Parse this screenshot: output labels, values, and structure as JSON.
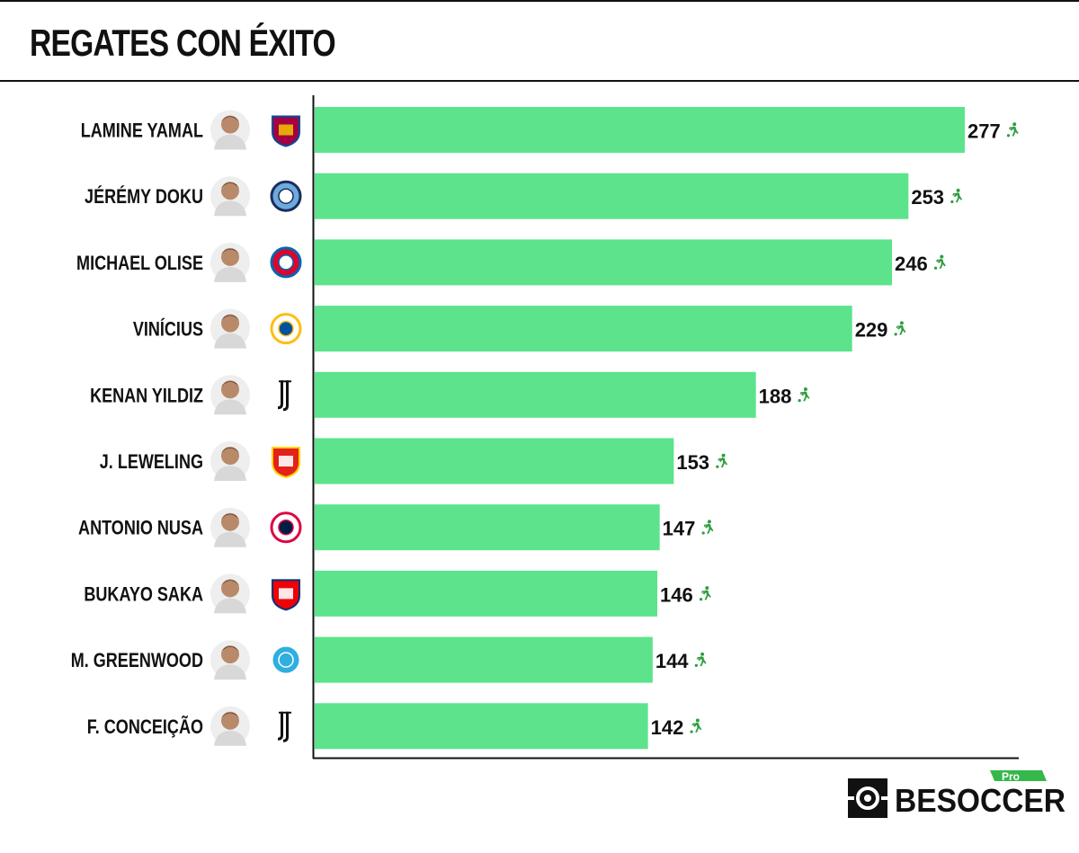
{
  "title": "REGATES CON ÉXITO",
  "chart_data": {
    "type": "bar",
    "orientation": "horizontal",
    "title": "REGATES CON ÉXITO",
    "categories": [
      "LAMINE YAMAL",
      "JÉRÉMY DOKU",
      "MICHAEL OLISE",
      "VINÍCIUS",
      "KENAN YILDIZ",
      "J. LEWELING",
      "ANTONIO NUSA",
      "BUKAYO SAKA",
      "M. GREENWOOD",
      "F. CONCEIÇÃO"
    ],
    "values": [
      277,
      253,
      246,
      229,
      188,
      153,
      147,
      146,
      144,
      142
    ],
    "clubs": [
      "barcelona-crest",
      "manchester-city-crest",
      "bayern-crest",
      "real-madrid-crest",
      "juventus-crest",
      "stuttgart-crest",
      "leipzig-crest",
      "arsenal-crest",
      "marseille-crest",
      "juventus-crest"
    ],
    "xlim": [
      0,
      300
    ],
    "grid": false,
    "bar_color": "#5ce38c",
    "value_icon": "dribbling-player-icon",
    "icon_color": "#2e9e3e"
  },
  "brand": {
    "name": "BESOCCER",
    "badge": "Pro",
    "icon": "besoccer-logo-icon"
  }
}
